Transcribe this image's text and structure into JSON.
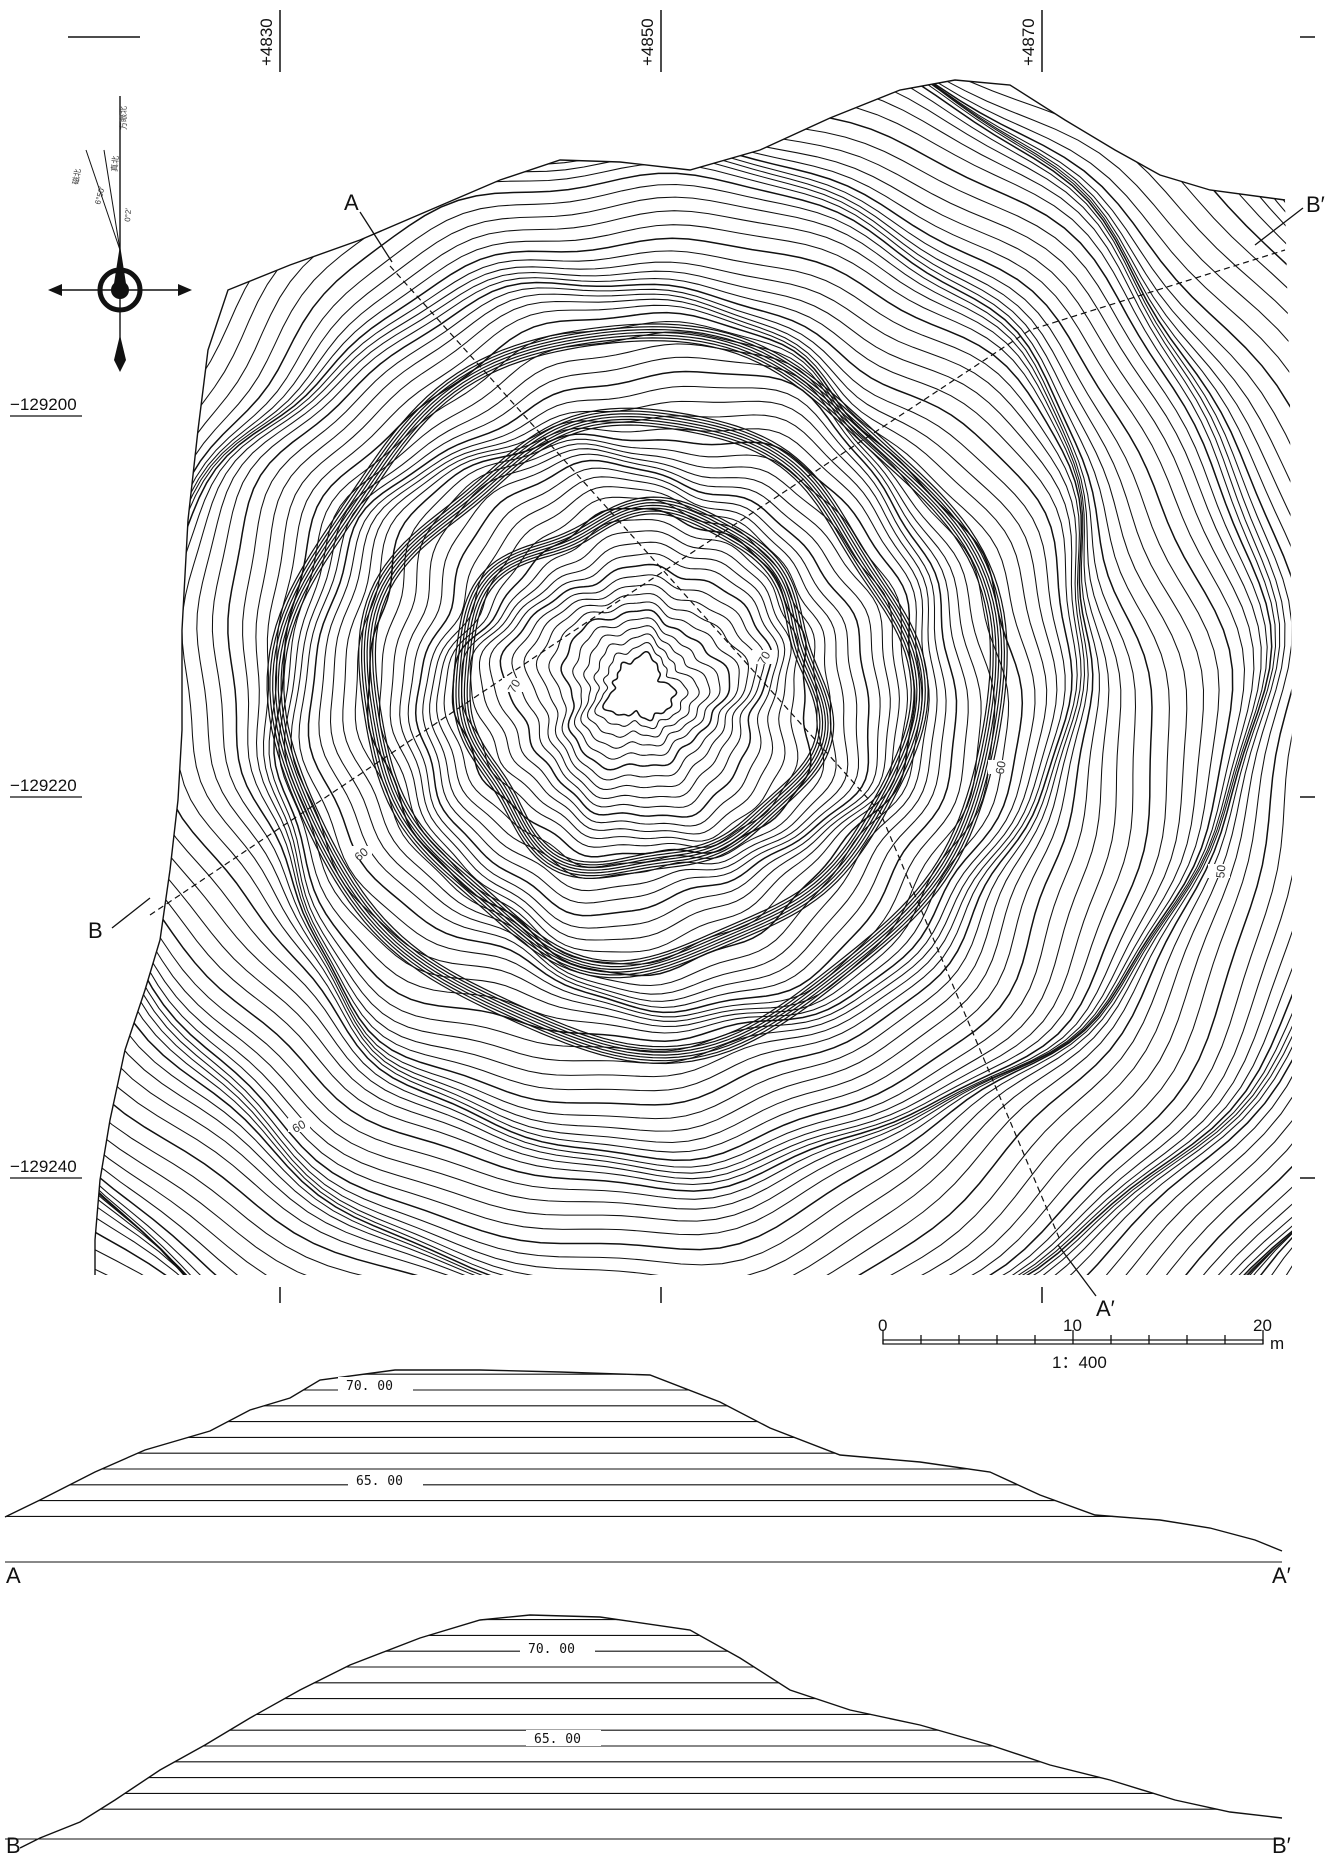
{
  "plan": {
    "grid_top_labels": [
      "+4830",
      "+4850",
      "+4870"
    ],
    "grid_left_labels": [
      "−129200",
      "−129220",
      "−129240"
    ],
    "contour_labels": [
      "70",
      "70",
      "60",
      "60",
      "50",
      "60"
    ],
    "section_markers": {
      "a_start": "A",
      "a_end": "A′",
      "b_start": "B",
      "b_end": "B′"
    }
  },
  "north_arrow": {
    "labels": [
      "方眼北",
      "磁北",
      "真北"
    ],
    "angle_labels": [
      "6°50′",
      "0°2′"
    ]
  },
  "scale_bar": {
    "ticks": [
      "0",
      "10",
      "20"
    ],
    "unit": "m",
    "ratio": "1：400"
  },
  "section_a": {
    "start_label": "A",
    "end_label": "A′",
    "elevation_labels": [
      "70. 00",
      "65. 00"
    ]
  },
  "section_b": {
    "start_label": "B",
    "end_label": "B′",
    "elevation_labels": [
      "70. 00",
      "65. 00"
    ]
  }
}
